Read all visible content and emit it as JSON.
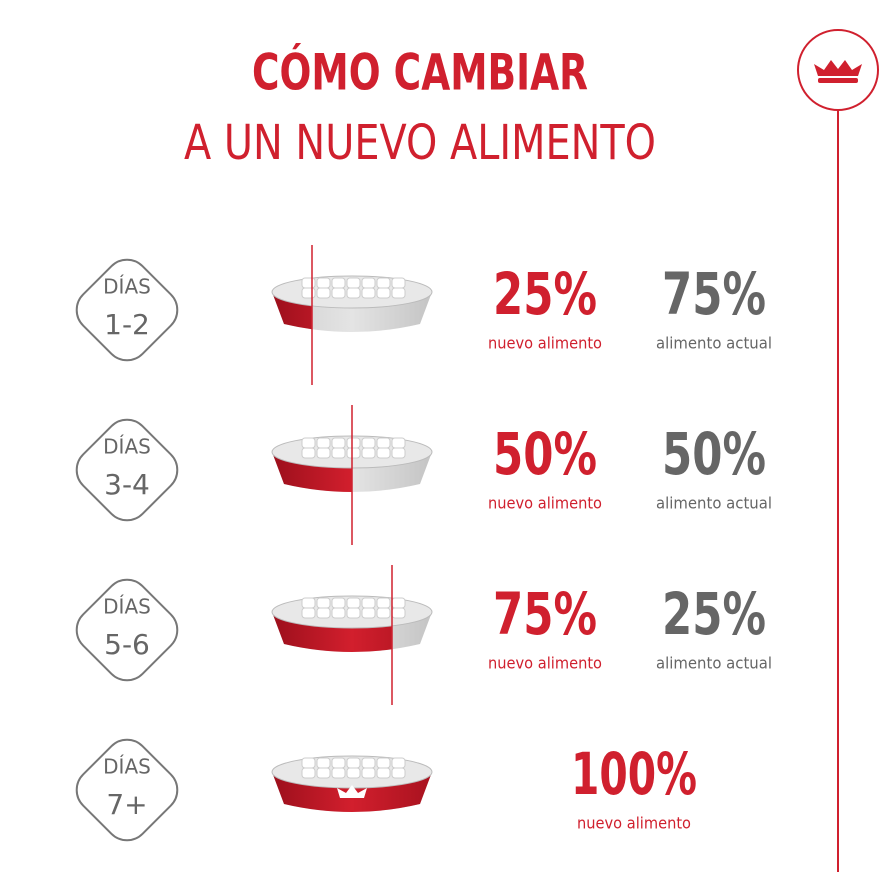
{
  "header": {
    "title": "CÓMO CAMBIAR",
    "subtitle": "A UN NUEVO ALIMENTO"
  },
  "rows": [
    {
      "days_label": "DÍAS",
      "days": "1-2",
      "new_share": {
        "value": 25,
        "label": "25%"
      },
      "new_caption": "nuevo alimento",
      "old_share": {
        "value": 75,
        "label": "75%"
      },
      "old_caption": "alimento actual"
    },
    {
      "days_label": "DÍAS",
      "days": "3-4",
      "new_share": {
        "value": 50,
        "label": "50%"
      },
      "new_caption": "nuevo alimento",
      "old_share": {
        "value": 50,
        "label": "50%"
      },
      "old_caption": "alimento actual"
    },
    {
      "days_label": "DÍAS",
      "days": "5-6",
      "new_share": {
        "value": 75,
        "label": "75%"
      },
      "new_caption": "nuevo alimento",
      "old_share": {
        "value": 25,
        "label": "25%"
      },
      "old_caption": "alimento actual"
    },
    {
      "days_label": "DÍAS",
      "days": "7+",
      "new_share": {
        "value": 100,
        "label": "100%"
      },
      "new_caption": "nuevo alimento"
    }
  ]
}
